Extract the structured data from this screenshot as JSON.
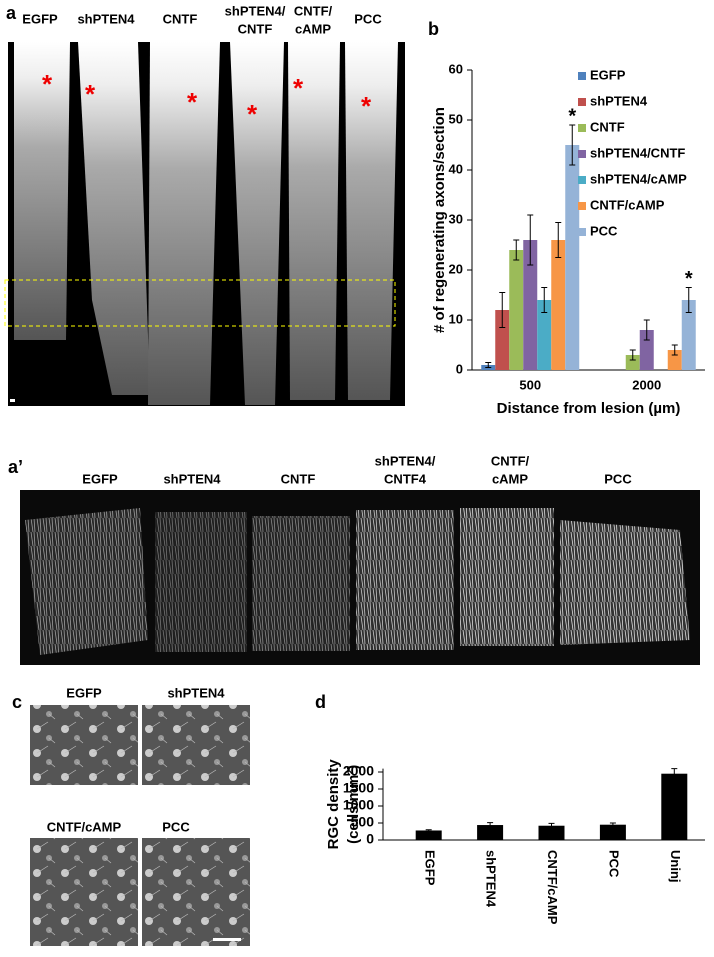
{
  "panel_letters": {
    "a": "a",
    "b": "b",
    "a_prime": "a’",
    "c": "c",
    "d": "d"
  },
  "panel_a": {
    "labels": [
      "EGFP",
      "shPTEN4",
      "CNTF",
      "shPTEN4/",
      "CNTF",
      "CNTF/",
      "cAMP",
      "PCC"
    ],
    "asterisk": "*"
  },
  "panel_a_prime": {
    "labels": [
      "EGFP",
      "shPTEN4",
      "CNTF",
      "shPTEN4/",
      "CNTF4",
      "CNTF/",
      "cAMP",
      "PCC"
    ]
  },
  "panel_c": {
    "labels": [
      "EGFP",
      "shPTEN4",
      "CNTF/cAMP",
      "PCC"
    ]
  },
  "chart_data": [
    {
      "type": "bar",
      "x_label": "Distance from lesion (µm)",
      "y_label": "# of regenerating  axons/section",
      "categories": [
        "500",
        "2000"
      ],
      "legend": "right",
      "annotation": "*",
      "series": [
        {
          "name": "EGFP",
          "color": "#4f81bd",
          "values": [
            1,
            0
          ],
          "errors": [
            0.5,
            0
          ]
        },
        {
          "name": "shPTEN4",
          "color": "#c0504d",
          "values": [
            12,
            0
          ],
          "errors": [
            3.5,
            0
          ]
        },
        {
          "name": "CNTF",
          "color": "#9bbb59",
          "values": [
            24,
            3
          ],
          "errors": [
            2,
            1
          ]
        },
        {
          "name": "shPTEN4/CNTF",
          "color": "#8064a2",
          "values": [
            26,
            8
          ],
          "errors": [
            5,
            2
          ]
        },
        {
          "name": "shPTEN4/cAMP",
          "color": "#4bacc6",
          "values": [
            14,
            0
          ],
          "errors": [
            2.5,
            0
          ]
        },
        {
          "name": "CNTF/cAMP",
          "color": "#f79646",
          "values": [
            26,
            4
          ],
          "errors": [
            3.5,
            1
          ]
        },
        {
          "name": "PCC",
          "color": "#95b3d7",
          "values": [
            45,
            14
          ],
          "errors": [
            4,
            2.5
          ]
        }
      ],
      "ylim": [
        0,
        60
      ],
      "yticks": [
        0,
        10,
        20,
        30,
        40,
        50,
        60
      ]
    },
    {
      "type": "bar",
      "y_label": [
        "RGC density",
        "(cells/mm²)"
      ],
      "categories": [
        "EGFP",
        "shPTEN4",
        "CNTF/cAMP",
        "PCC",
        "Uninj"
      ],
      "values": [
        280,
        440,
        420,
        450,
        1950
      ],
      "errors": [
        20,
        70,
        70,
        50,
        150
      ],
      "color": "#000000",
      "ylim": [
        0,
        2100
      ],
      "yticks": [
        0,
        500,
        1000,
        1500,
        2000
      ]
    }
  ]
}
